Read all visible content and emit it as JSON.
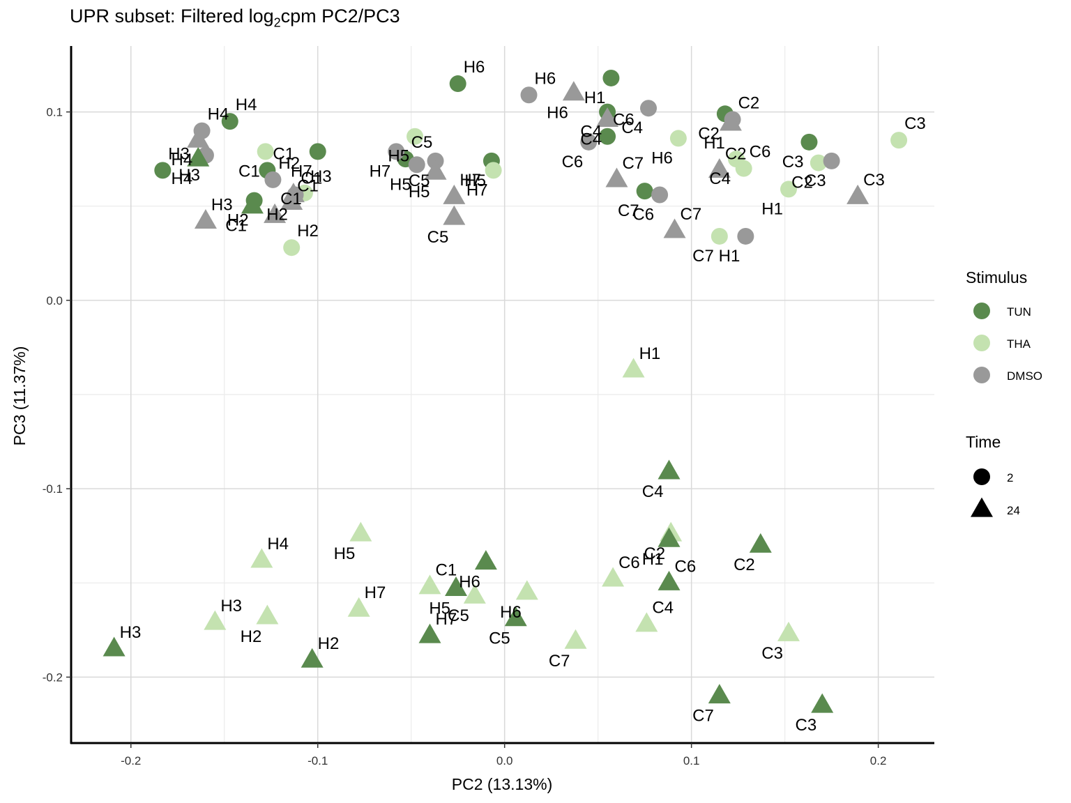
{
  "chart_data": {
    "type": "scatter",
    "title": {
      "prefix": "UPR subset: Filtered log",
      "subscript": "2",
      "suffix": "cpm PC2/PC3"
    },
    "xlabel": "PC2 (13.13%)",
    "ylabel": "PC3 (11.37%)",
    "xlim": [
      -0.232,
      0.23
    ],
    "ylim": [
      -0.235,
      0.135
    ],
    "x_ticks": [
      -0.2,
      -0.1,
      0.0,
      0.1,
      0.2
    ],
    "x_tick_labels": [
      "-0.2",
      "-0.1",
      "0.0",
      "0.1",
      "0.2"
    ],
    "y_ticks": [
      -0.2,
      -0.1,
      0.0,
      0.1
    ],
    "y_tick_labels": [
      "-0.2",
      "-0.1",
      "0.0",
      "0.1"
    ],
    "grid": true,
    "legend_position": "right",
    "colors": {
      "TUN": "#5a8a4e",
      "THA": "#c4e2b0",
      "DMSO": "#999999"
    },
    "legend": {
      "stimulus": {
        "title": "Stimulus",
        "items": [
          "TUN",
          "THA",
          "DMSO"
        ]
      },
      "time": {
        "title": "Time",
        "items": [
          "2",
          "24"
        ]
      }
    },
    "points": [
      {
        "x": 0.057,
        "y": 0.118,
        "stimulus": "TUN",
        "time": "2",
        "label": "H1"
      },
      {
        "x": -0.025,
        "y": 0.115,
        "stimulus": "TUN",
        "time": "2",
        "label": "H6"
      },
      {
        "x": 0.055,
        "y": 0.1,
        "stimulus": "TUN",
        "time": "2",
        "label": "C4"
      },
      {
        "x": 0.055,
        "y": 0.087,
        "stimulus": "TUN",
        "time": "2",
        "label": "C6"
      },
      {
        "x": 0.118,
        "y": 0.099,
        "stimulus": "TUN",
        "time": "2",
        "label": "C2"
      },
      {
        "x": 0.163,
        "y": 0.084,
        "stimulus": "TUN",
        "time": "2",
        "label": "C3"
      },
      {
        "x": -0.147,
        "y": 0.095,
        "stimulus": "TUN",
        "time": "2",
        "label": "H4"
      },
      {
        "x": -0.1,
        "y": 0.079,
        "stimulus": "TUN",
        "time": "2",
        "label": "H7"
      },
      {
        "x": -0.007,
        "y": 0.074,
        "stimulus": "TUN",
        "time": "2",
        "label": "H5"
      },
      {
        "x": -0.053,
        "y": 0.075,
        "stimulus": "TUN",
        "time": "2",
        "label": "C5"
      },
      {
        "x": -0.183,
        "y": 0.069,
        "stimulus": "TUN",
        "time": "2",
        "label": "H3"
      },
      {
        "x": -0.127,
        "y": 0.069,
        "stimulus": "TUN",
        "time": "2",
        "label": "C1"
      },
      {
        "x": -0.134,
        "y": 0.053,
        "stimulus": "TUN",
        "time": "2",
        "label": "H2"
      },
      {
        "x": 0.075,
        "y": 0.058,
        "stimulus": "TUN",
        "time": "2",
        "label": "C7"
      },
      {
        "x": -0.048,
        "y": 0.087,
        "stimulus": "THA",
        "time": "2",
        "label": "H5"
      },
      {
        "x": 0.093,
        "y": 0.086,
        "stimulus": "THA",
        "time": "2",
        "label": "H6"
      },
      {
        "x": 0.211,
        "y": 0.085,
        "stimulus": "THA",
        "time": "2",
        "label": "C3"
      },
      {
        "x": -0.128,
        "y": 0.079,
        "stimulus": "THA",
        "time": "2",
        "label": "C1"
      },
      {
        "x": 0.124,
        "y": 0.075,
        "stimulus": "THA",
        "time": "2",
        "label": "C4"
      },
      {
        "x": 0.168,
        "y": 0.073,
        "stimulus": "THA",
        "time": "2",
        "label": "C2"
      },
      {
        "x": 0.128,
        "y": 0.07,
        "stimulus": "THA",
        "time": "2",
        "label": "C6"
      },
      {
        "x": -0.006,
        "y": 0.069,
        "stimulus": "THA",
        "time": "2",
        "label": "H7"
      },
      {
        "x": 0.152,
        "y": 0.059,
        "stimulus": "THA",
        "time": "2",
        "label": "H1"
      },
      {
        "x": -0.107,
        "y": 0.057,
        "stimulus": "THA",
        "time": "2",
        "label": "H3"
      },
      {
        "x": 0.115,
        "y": 0.034,
        "stimulus": "THA",
        "time": "2",
        "label": "C7"
      },
      {
        "x": -0.114,
        "y": 0.028,
        "stimulus": "THA",
        "time": "2",
        "label": "H2"
      },
      {
        "x": 0.013,
        "y": 0.109,
        "stimulus": "DMSO",
        "time": "2",
        "label": "H6"
      },
      {
        "x": 0.077,
        "y": 0.102,
        "stimulus": "DMSO",
        "time": "2",
        "label": "C4"
      },
      {
        "x": 0.122,
        "y": 0.096,
        "stimulus": "DMSO",
        "time": "2",
        "label": "C2"
      },
      {
        "x": -0.162,
        "y": 0.09,
        "stimulus": "DMSO",
        "time": "2",
        "label": "H4"
      },
      {
        "x": 0.045,
        "y": 0.084,
        "stimulus": "DMSO",
        "time": "2",
        "label": "C6"
      },
      {
        "x": -0.16,
        "y": 0.077,
        "stimulus": "DMSO",
        "time": "2",
        "label": "H3"
      },
      {
        "x": -0.058,
        "y": 0.079,
        "stimulus": "DMSO",
        "time": "2",
        "label": "H7"
      },
      {
        "x": 0.175,
        "y": 0.074,
        "stimulus": "DMSO",
        "time": "2",
        "label": "C3"
      },
      {
        "x": -0.037,
        "y": 0.074,
        "stimulus": "DMSO",
        "time": "2",
        "label": "C5"
      },
      {
        "x": -0.047,
        "y": 0.072,
        "stimulus": "DMSO",
        "time": "2",
        "label": "H5"
      },
      {
        "x": -0.124,
        "y": 0.064,
        "stimulus": "DMSO",
        "time": "2",
        "label": "H2"
      },
      {
        "x": -0.112,
        "y": 0.056,
        "stimulus": "DMSO",
        "time": "2",
        "label": "C1"
      },
      {
        "x": 0.083,
        "y": 0.056,
        "stimulus": "DMSO",
        "time": "2",
        "label": "C6"
      },
      {
        "x": 0.129,
        "y": 0.034,
        "stimulus": "DMSO",
        "time": "2",
        "label": "H1"
      },
      {
        "x": -0.164,
        "y": 0.075,
        "stimulus": "TUN",
        "time": "24",
        "label": "H4"
      },
      {
        "x": -0.135,
        "y": 0.05,
        "stimulus": "TUN",
        "time": "24",
        "label": "C1"
      },
      {
        "x": 0.037,
        "y": 0.11,
        "stimulus": "DMSO",
        "time": "24",
        "label": "H6"
      },
      {
        "x": 0.055,
        "y": 0.096,
        "stimulus": "DMSO",
        "time": "24",
        "label": "C4"
      },
      {
        "x": 0.121,
        "y": 0.094,
        "stimulus": "DMSO",
        "time": "24",
        "label": "H1"
      },
      {
        "x": -0.164,
        "y": 0.085,
        "stimulus": "DMSO",
        "time": "24",
        "label": "H4"
      },
      {
        "x": 0.115,
        "y": 0.069,
        "stimulus": "DMSO",
        "time": "24",
        "label": "C2"
      },
      {
        "x": -0.037,
        "y": 0.068,
        "stimulus": "DMSO",
        "time": "24",
        "label": "H5"
      },
      {
        "x": 0.06,
        "y": 0.064,
        "stimulus": "DMSO",
        "time": "24",
        "label": "C7"
      },
      {
        "x": -0.113,
        "y": 0.056,
        "stimulus": "DMSO",
        "time": "24",
        "label": "H2"
      },
      {
        "x": 0.189,
        "y": 0.055,
        "stimulus": "DMSO",
        "time": "24",
        "label": "C3"
      },
      {
        "x": -0.027,
        "y": 0.055,
        "stimulus": "DMSO",
        "time": "24",
        "label": "H7"
      },
      {
        "x": -0.114,
        "y": 0.052,
        "stimulus": "DMSO",
        "time": "24",
        "label": "C1"
      },
      {
        "x": -0.027,
        "y": 0.044,
        "stimulus": "DMSO",
        "time": "24",
        "label": "C5"
      },
      {
        "x": -0.123,
        "y": 0.045,
        "stimulus": "DMSO",
        "time": "24",
        "label": "C1"
      },
      {
        "x": -0.16,
        "y": 0.042,
        "stimulus": "DMSO",
        "time": "24",
        "label": "H3"
      },
      {
        "x": 0.091,
        "y": 0.037,
        "stimulus": "DMSO",
        "time": "24",
        "label": "C7"
      },
      {
        "x": 0.069,
        "y": -0.037,
        "stimulus": "THA",
        "time": "24",
        "label": "H1"
      },
      {
        "x": 0.089,
        "y": -0.124,
        "stimulus": "THA",
        "time": "24",
        "label": "C2"
      },
      {
        "x": -0.077,
        "y": -0.124,
        "stimulus": "THA",
        "time": "24",
        "label": "H5"
      },
      {
        "x": -0.13,
        "y": -0.138,
        "stimulus": "THA",
        "time": "24",
        "label": "H4"
      },
      {
        "x": 0.058,
        "y": -0.148,
        "stimulus": "THA",
        "time": "24",
        "label": "C6"
      },
      {
        "x": -0.04,
        "y": -0.152,
        "stimulus": "THA",
        "time": "24",
        "label": "C1"
      },
      {
        "x": 0.012,
        "y": -0.155,
        "stimulus": "THA",
        "time": "24",
        "label": "H6"
      },
      {
        "x": -0.016,
        "y": -0.157,
        "stimulus": "THA",
        "time": "24",
        "label": "C5"
      },
      {
        "x": -0.078,
        "y": -0.164,
        "stimulus": "THA",
        "time": "24",
        "label": "H7"
      },
      {
        "x": -0.127,
        "y": -0.168,
        "stimulus": "THA",
        "time": "24",
        "label": "H2"
      },
      {
        "x": -0.155,
        "y": -0.171,
        "stimulus": "THA",
        "time": "24",
        "label": "H3"
      },
      {
        "x": 0.076,
        "y": -0.172,
        "stimulus": "THA",
        "time": "24",
        "label": "C4"
      },
      {
        "x": 0.152,
        "y": -0.177,
        "stimulus": "THA",
        "time": "24",
        "label": "C3"
      },
      {
        "x": 0.038,
        "y": -0.181,
        "stimulus": "THA",
        "time": "24",
        "label": "C7"
      },
      {
        "x": 0.088,
        "y": -0.091,
        "stimulus": "TUN",
        "time": "24",
        "label": "C4"
      },
      {
        "x": 0.137,
        "y": -0.13,
        "stimulus": "TUN",
        "time": "24",
        "label": "C2"
      },
      {
        "x": 0.088,
        "y": -0.127,
        "stimulus": "TUN",
        "time": "24",
        "label": "H1"
      },
      {
        "x": -0.01,
        "y": -0.139,
        "stimulus": "TUN",
        "time": "24",
        "label": "H6"
      },
      {
        "x": 0.088,
        "y": -0.15,
        "stimulus": "TUN",
        "time": "24",
        "label": "C6"
      },
      {
        "x": -0.026,
        "y": -0.153,
        "stimulus": "TUN",
        "time": "24",
        "label": "H5"
      },
      {
        "x": 0.006,
        "y": -0.169,
        "stimulus": "TUN",
        "time": "24",
        "label": "C5"
      },
      {
        "x": -0.04,
        "y": -0.178,
        "stimulus": "TUN",
        "time": "24",
        "label": "H7"
      },
      {
        "x": -0.209,
        "y": -0.185,
        "stimulus": "TUN",
        "time": "24",
        "label": "H3"
      },
      {
        "x": -0.103,
        "y": -0.191,
        "stimulus": "TUN",
        "time": "24",
        "label": "H2"
      },
      {
        "x": 0.115,
        "y": -0.21,
        "stimulus": "TUN",
        "time": "24",
        "label": "C7"
      },
      {
        "x": 0.17,
        "y": -0.215,
        "stimulus": "TUN",
        "time": "24",
        "label": "C3"
      }
    ]
  }
}
